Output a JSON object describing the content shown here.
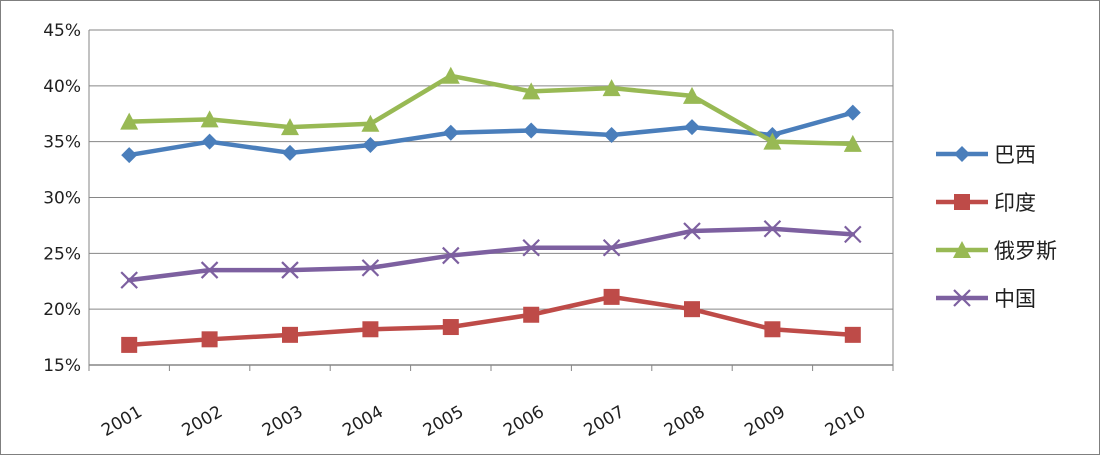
{
  "chart_data": {
    "type": "line",
    "categories": [
      "2001",
      "2002",
      "2003",
      "2004",
      "2005",
      "2006",
      "2007",
      "2008",
      "2009",
      "2010"
    ],
    "ylim": [
      15,
      45
    ],
    "yticks": [
      "15%",
      "20%",
      "25%",
      "30%",
      "35%",
      "40%",
      "45%"
    ],
    "y_unit": "%",
    "grid": "horizontal",
    "legend_position": "right",
    "series": [
      {
        "name": "巴西",
        "color": "#4a7ebb",
        "marker": "diamond",
        "values": [
          33.8,
          35.0,
          34.0,
          34.7,
          35.8,
          36.0,
          35.6,
          36.3,
          35.6,
          37.6
        ]
      },
      {
        "name": "印度",
        "color": "#be4b48",
        "marker": "square",
        "values": [
          16.8,
          17.3,
          17.7,
          18.2,
          18.4,
          19.5,
          21.1,
          20.0,
          18.2,
          17.7
        ]
      },
      {
        "name": "俄罗斯",
        "color": "#98b954",
        "marker": "triangle",
        "values": [
          36.8,
          37.0,
          36.3,
          36.6,
          40.9,
          39.5,
          39.8,
          39.1,
          35.0,
          34.8
        ]
      },
      {
        "name": "中国",
        "color": "#7d60a0",
        "marker": "x",
        "values": [
          22.6,
          23.5,
          23.5,
          23.7,
          24.8,
          25.5,
          25.5,
          27.0,
          27.2,
          26.7
        ]
      }
    ]
  }
}
